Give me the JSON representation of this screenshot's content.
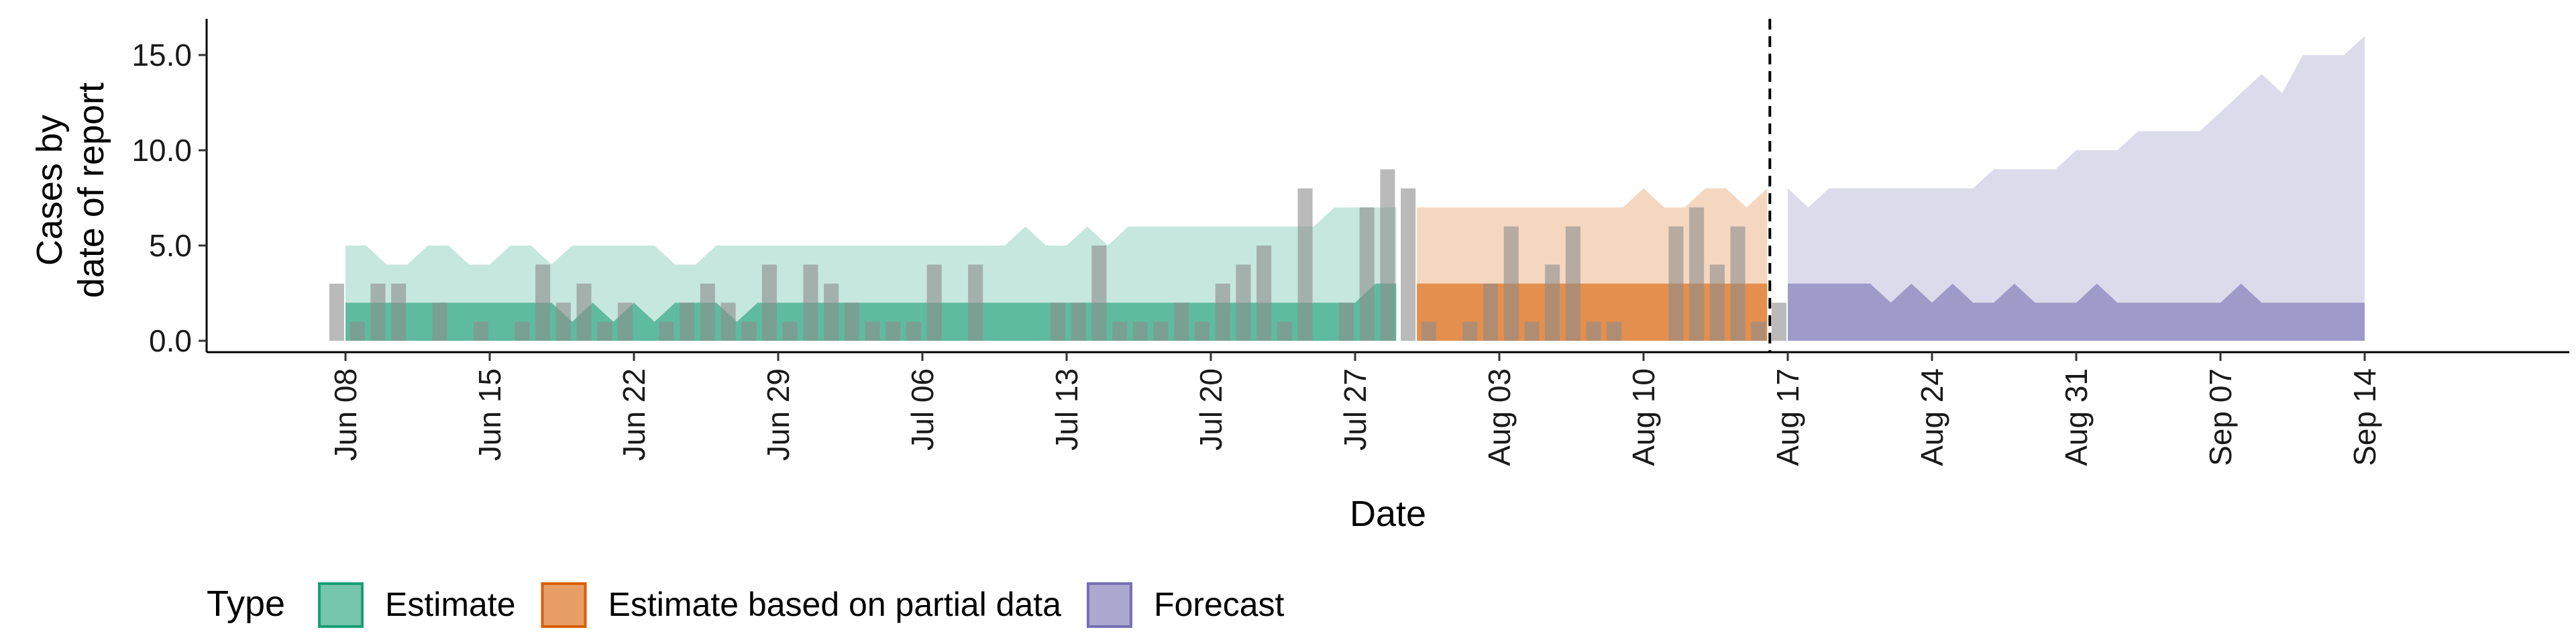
{
  "chart_data": {
    "type": "area",
    "xlabel": "Date",
    "ylabel_lines": [
      "Cases by",
      "date of report"
    ],
    "ylim": [
      0,
      16.5
    ],
    "yticks": [
      0,
      5,
      10,
      15
    ],
    "ytick_labels": [
      "0.0",
      "5.0",
      "10.0",
      "15.0"
    ],
    "x_start": "2020-06-08",
    "x_end": "2020-09-14",
    "xlim": [
      "2020-06-01",
      "2020-09-21"
    ],
    "xticks": [
      "2020-06-08",
      "2020-06-15",
      "2020-06-22",
      "2020-06-29",
      "2020-07-06",
      "2020-07-13",
      "2020-07-20",
      "2020-07-27",
      "2020-08-03",
      "2020-08-10",
      "2020-08-17",
      "2020-08-24",
      "2020-08-31",
      "2020-09-07",
      "2020-09-14"
    ],
    "xtick_labels": [
      "Jun 08",
      "Jun 15",
      "Jun 22",
      "Jun 29",
      "Jul 06",
      "Jul 13",
      "Jul 20",
      "Jul 27",
      "Aug 03",
      "Aug 10",
      "Aug 17",
      "Aug 24",
      "Aug 31",
      "Sep 07",
      "Sep 14"
    ],
    "forecast_date": "2020-08-16",
    "observed_cases": [
      3,
      1,
      3,
      3,
      0,
      2,
      0,
      1,
      0,
      1,
      4,
      2,
      3,
      1,
      2,
      0,
      1,
      2,
      3,
      2,
      1,
      4,
      1,
      4,
      3,
      2,
      1,
      1,
      1,
      4,
      0,
      4,
      0,
      0,
      0,
      2,
      2,
      5,
      1,
      1,
      1,
      2,
      1,
      3,
      4,
      5,
      1,
      8,
      0,
      2,
      7,
      9,
      8,
      1,
      0,
      1,
      3,
      6,
      1,
      4,
      6,
      1,
      1,
      0,
      0,
      6,
      7,
      4,
      6,
      1,
      2
    ],
    "series": [
      {
        "name": "Estimate",
        "color": "#1B9E77",
        "start": "2020-06-08",
        "lower": [
          0,
          0,
          0,
          0,
          0,
          0,
          0,
          0,
          0,
          0,
          0,
          0,
          0,
          0,
          0,
          0,
          0,
          0,
          0,
          0,
          0,
          0,
          0,
          0,
          0,
          0,
          0,
          0,
          0,
          0,
          0,
          0,
          0,
          0,
          0,
          0,
          0,
          0,
          0,
          0,
          0,
          0,
          0,
          0,
          0,
          0,
          0,
          0,
          0,
          0,
          0,
          0
        ],
        "upper": [
          5,
          5,
          4,
          4,
          5,
          5,
          4,
          4,
          5,
          5,
          4,
          5,
          5,
          5,
          5,
          5,
          4,
          4,
          5,
          5,
          5,
          5,
          5,
          5,
          5,
          5,
          5,
          5,
          5,
          5,
          5,
          5,
          5,
          6,
          5,
          5,
          6,
          5,
          6,
          6,
          6,
          6,
          6,
          6,
          6,
          6,
          6,
          6,
          7,
          7,
          7,
          7
        ],
        "inner_lower": [
          0,
          0,
          0,
          0,
          0,
          0,
          0,
          0,
          0,
          0,
          0,
          0,
          0,
          0,
          0,
          0,
          0,
          0,
          0,
          0,
          0,
          0,
          0,
          0,
          0,
          0,
          0,
          0,
          0,
          0,
          0,
          0,
          0,
          0,
          0,
          0,
          0,
          0,
          0,
          0,
          0,
          0,
          0,
          0,
          0,
          0,
          0,
          0,
          0,
          0,
          0,
          0
        ],
        "inner_upper": [
          2,
          2,
          2,
          2,
          2,
          2,
          2,
          2,
          2,
          2,
          2,
          1,
          2,
          1,
          2,
          1,
          2,
          2,
          2,
          1,
          2,
          2,
          2,
          2,
          2,
          2,
          2,
          2,
          2,
          2,
          2,
          2,
          2,
          2,
          2,
          2,
          2,
          2,
          2,
          2,
          2,
          2,
          2,
          2,
          2,
          2,
          2,
          2,
          2,
          2,
          3,
          3
        ]
      },
      {
        "name": "Estimate based on partial data",
        "color": "#D95F02",
        "start": "2020-07-30",
        "lower": [
          0,
          0,
          0,
          0,
          0,
          0,
          0,
          0,
          0,
          0,
          0,
          0,
          0,
          0,
          0,
          0,
          0,
          0
        ],
        "upper": [
          7,
          7,
          7,
          7,
          7,
          7,
          7,
          7,
          7,
          7,
          7,
          8,
          7,
          7,
          8,
          8,
          7,
          8
        ],
        "inner_lower": [
          0,
          0,
          0,
          0,
          0,
          0,
          0,
          0,
          0,
          0,
          0,
          0,
          0,
          0,
          0,
          0,
          0,
          0
        ],
        "inner_upper": [
          3,
          3,
          3,
          3,
          3,
          3,
          3,
          3,
          3,
          3,
          3,
          3,
          3,
          3,
          3,
          3,
          3,
          3
        ]
      },
      {
        "name": "Forecast",
        "color": "#7570B3",
        "start": "2020-08-17",
        "lower": [
          0,
          0,
          0,
          0,
          0,
          0,
          0,
          0,
          0,
          0,
          0,
          0,
          0,
          0,
          0,
          0,
          0,
          0,
          0,
          0,
          0,
          0,
          0,
          0,
          0,
          0,
          0,
          0,
          0
        ],
        "upper": [
          8,
          7,
          8,
          8,
          8,
          8,
          8,
          8,
          8,
          8,
          9,
          9,
          9,
          9,
          10,
          10,
          10,
          11,
          11,
          11,
          11,
          12,
          13,
          14,
          13,
          15,
          15,
          15,
          16
        ],
        "inner_lower": [
          0,
          0,
          0,
          0,
          0,
          0,
          0,
          0,
          0,
          0,
          0,
          0,
          0,
          0,
          0,
          0,
          0,
          0,
          0,
          0,
          0,
          0,
          0,
          0,
          0,
          0,
          0,
          0,
          0
        ],
        "inner_upper": [
          3,
          3,
          3,
          3,
          3,
          2,
          3,
          2,
          3,
          2,
          2,
          3,
          2,
          2,
          2,
          3,
          2,
          2,
          2,
          2,
          2,
          2,
          3,
          2,
          2,
          2,
          2,
          2,
          2
        ]
      }
    ],
    "legend": {
      "title": "Type",
      "position": "bottom-left",
      "items": [
        "Estimate",
        "Estimate based on partial data",
        "Forecast"
      ]
    },
    "grid": false
  }
}
